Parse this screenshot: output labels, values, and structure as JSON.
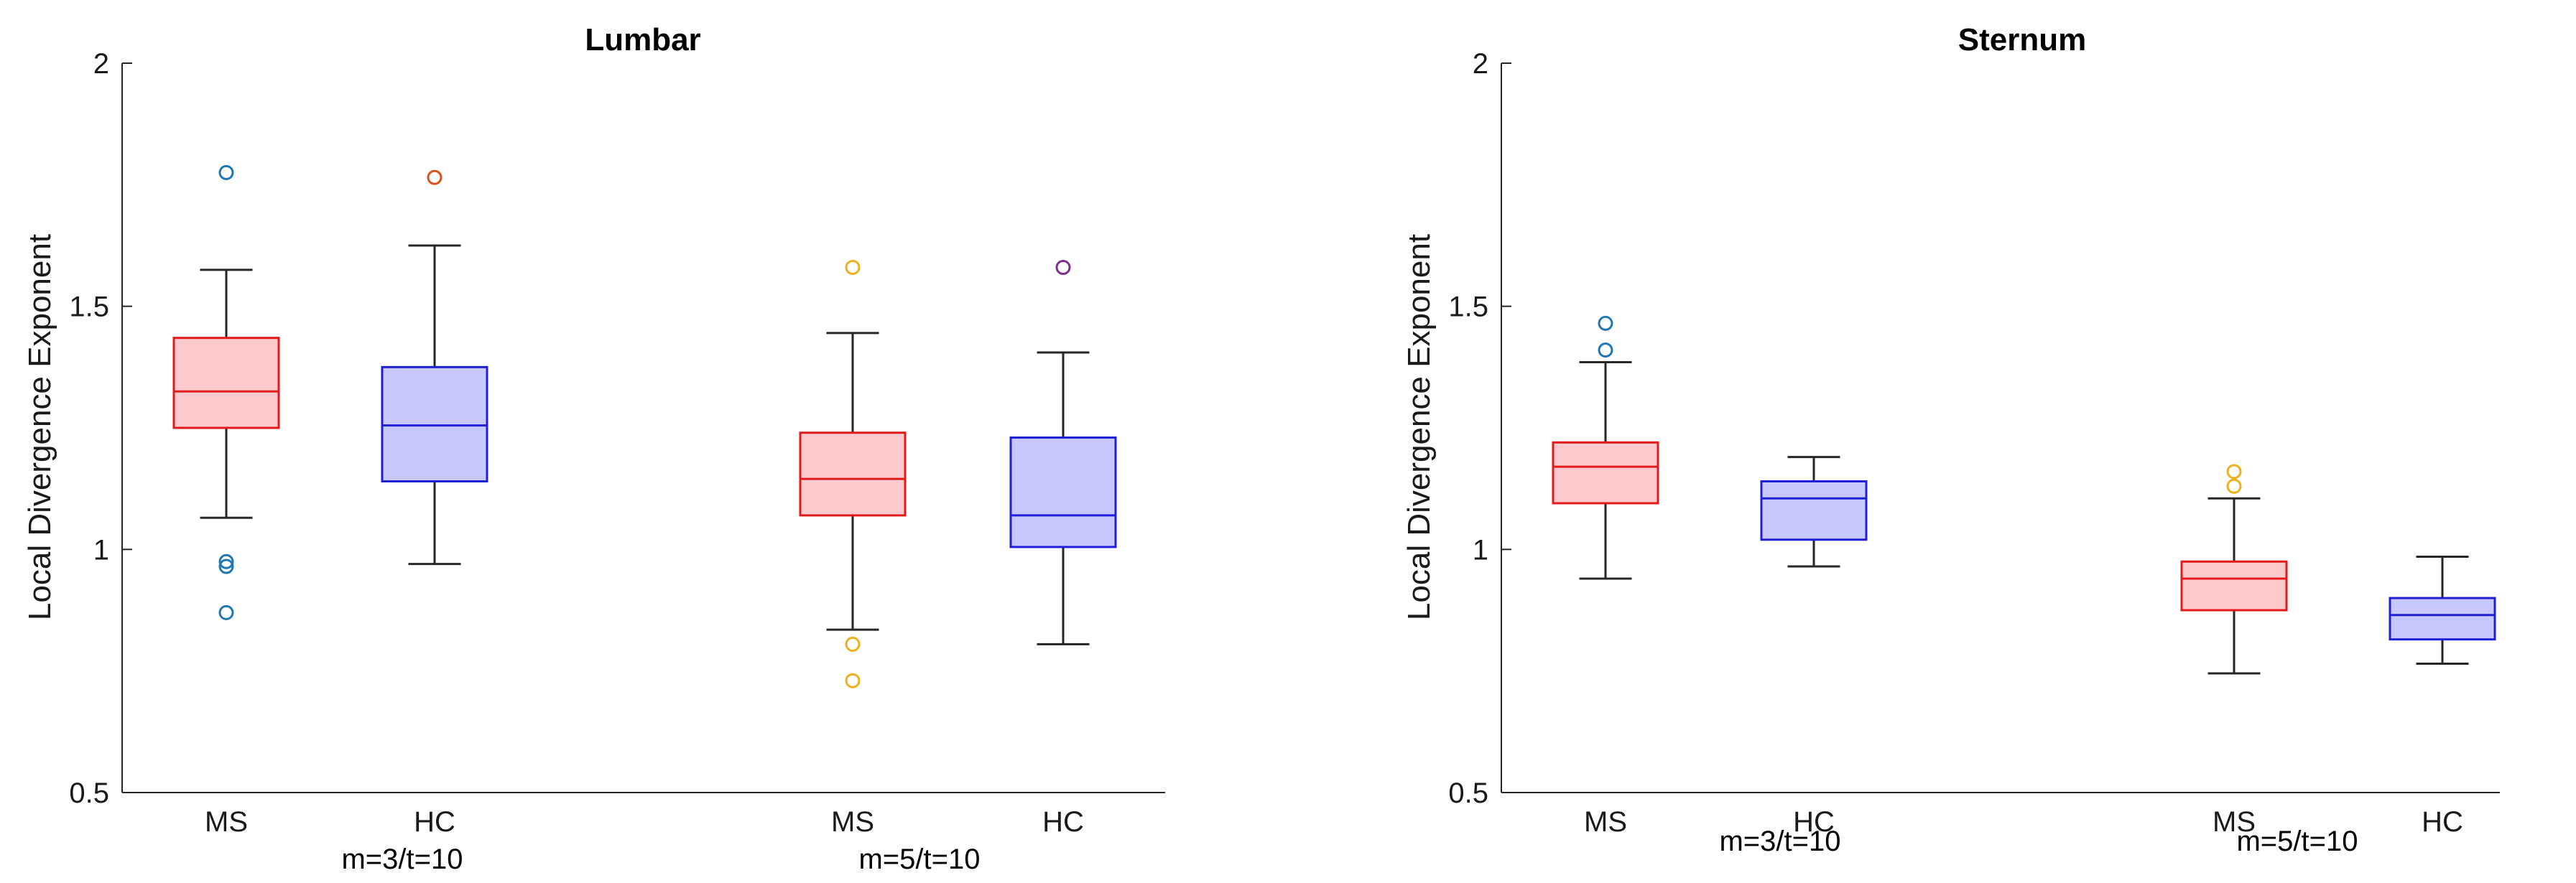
{
  "chart_data": [
    {
      "type": "box",
      "title": "Lumbar",
      "ylabel": "Local Divergence Exponent",
      "xlabel": "",
      "ylim": [
        0.5,
        2
      ],
      "yticks": [
        0.5,
        1,
        1.5,
        2
      ],
      "tick_labels": [
        "0.5",
        "1",
        "1.5",
        "2"
      ],
      "groups": [
        {
          "label": "m=3/t=10",
          "boxes": [
            {
              "category": "MS",
              "whisker_low": 1.065,
              "q1": 1.25,
              "median": 1.325,
              "q3": 1.435,
              "whisker_high": 1.575,
              "outliers": [
                1.775,
                0.975,
                0.965,
                0.87
              ],
              "color": "#e31a1c",
              "fill": "#fcc9cc",
              "outlier_color": "#1f77b4"
            },
            {
              "category": "HC",
              "whisker_low": 0.97,
              "q1": 1.14,
              "median": 1.255,
              "q3": 1.375,
              "whisker_high": 1.625,
              "outliers": [
                1.765
              ],
              "color": "#1f1fd6",
              "fill": "#c8c8ff",
              "outlier_color": "#d95319"
            }
          ]
        },
        {
          "label": "m=5/t=10",
          "boxes": [
            {
              "category": "MS",
              "whisker_low": 0.835,
              "q1": 1.07,
              "median": 1.145,
              "q3": 1.24,
              "whisker_high": 1.445,
              "outliers": [
                1.58,
                0.805,
                0.73
              ],
              "color": "#e31a1c",
              "fill": "#fcc9cc",
              "outlier_color": "#edb120"
            },
            {
              "category": "HC",
              "whisker_low": 0.805,
              "q1": 1.005,
              "median": 1.07,
              "q3": 1.23,
              "whisker_high": 1.405,
              "outliers": [
                1.58
              ],
              "color": "#1f1fd6",
              "fill": "#c8c8ff",
              "outlier_color": "#7e2f8e"
            }
          ]
        }
      ]
    },
    {
      "type": "box",
      "title": "Sternum",
      "ylabel": "Local Divergence Exponent",
      "xlabel": "",
      "ylim": [
        0.5,
        2
      ],
      "yticks": [
        0.5,
        1,
        1.5,
        2
      ],
      "tick_labels": [
        "0.5",
        "1",
        "1.5",
        "2"
      ],
      "groups": [
        {
          "label": "m=3/t=10",
          "boxes": [
            {
              "category": "MS",
              "whisker_low": 0.94,
              "q1": 1.095,
              "median": 1.17,
              "q3": 1.22,
              "whisker_high": 1.385,
              "outliers": [
                1.465,
                1.41
              ],
              "color": "#e31a1c",
              "fill": "#fcc9cc",
              "outlier_color": "#1f77b4"
            },
            {
              "category": "HC",
              "whisker_low": 0.965,
              "q1": 1.02,
              "median": 1.105,
              "q3": 1.14,
              "whisker_high": 1.19,
              "outliers": [],
              "color": "#1f1fd6",
              "fill": "#c8c8ff",
              "outlier_color": "#d95319"
            }
          ]
        },
        {
          "label": "m=5/t=10",
          "boxes": [
            {
              "category": "MS",
              "whisker_low": 0.745,
              "q1": 0.875,
              "median": 0.94,
              "q3": 0.975,
              "whisker_high": 1.105,
              "outliers": [
                1.16,
                1.13
              ],
              "color": "#e31a1c",
              "fill": "#fcc9cc",
              "outlier_color": "#edb120"
            },
            {
              "category": "HC",
              "whisker_low": 0.765,
              "q1": 0.815,
              "median": 0.865,
              "q3": 0.9,
              "whisker_high": 0.985,
              "outliers": [],
              "color": "#1f1fd6",
              "fill": "#c8c8ff",
              "outlier_color": "#7e2f8e"
            }
          ]
        }
      ]
    }
  ]
}
